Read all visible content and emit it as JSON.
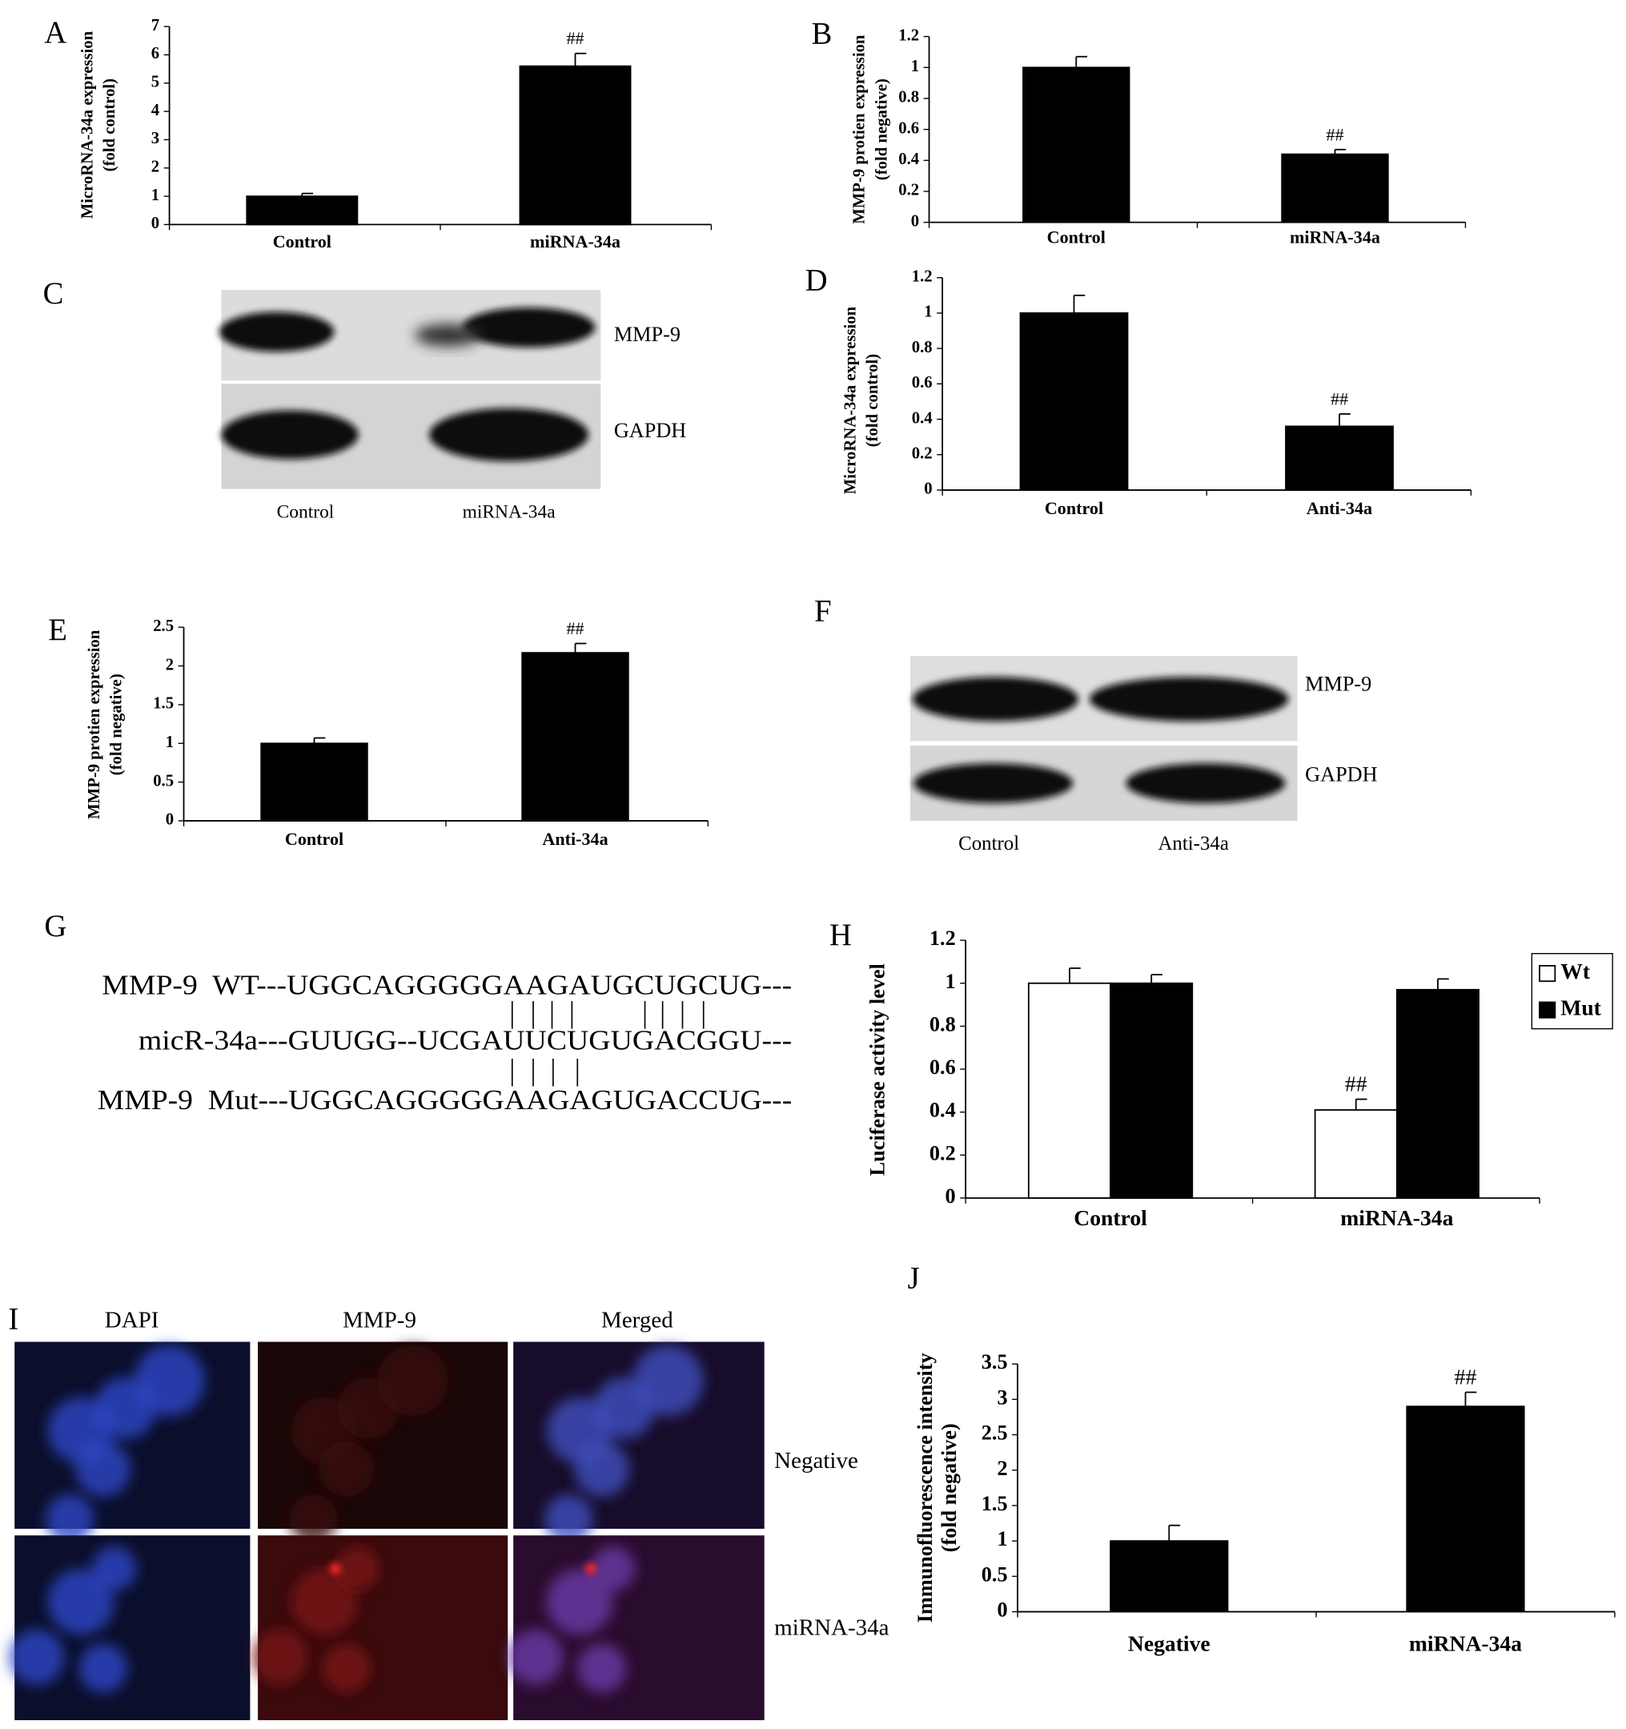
{
  "chart_data": [
    {
      "type": "bar",
      "panel_label": "A",
      "ylabel": [
        "MicroRNA-34a expression",
        "(fold control)"
      ],
      "categories": [
        "Control",
        "miRNA-34a"
      ],
      "values": [
        1.0,
        5.6
      ],
      "errors": [
        0.1,
        0.45
      ],
      "color": "#000000",
      "ylim": [
        0,
        7
      ],
      "yticks": [
        0,
        1,
        2,
        3,
        4,
        5,
        6,
        7
      ],
      "annotations": [
        {
          "text": "##",
          "category": "miRNA-34a"
        }
      ]
    },
    {
      "type": "bar",
      "panel_label": "B",
      "ylabel": [
        "MMP-9 protien expression",
        "(fold negative)"
      ],
      "categories": [
        "Control",
        "miRNA-34a"
      ],
      "values": [
        1.0,
        0.44
      ],
      "errors": [
        0.07,
        0.03
      ],
      "color": "#000000",
      "ylim": [
        0,
        1.2
      ],
      "yticks": [
        0,
        0.2,
        0.4,
        0.6,
        0.8,
        1,
        1.2
      ],
      "annotations": [
        {
          "text": "##",
          "category": "miRNA-34a"
        }
      ]
    },
    {
      "type": "bar",
      "panel_label": "D",
      "ylabel": [
        "MicroRNA-34a expression",
        "(fold control)"
      ],
      "categories": [
        "Control",
        "Anti-34a"
      ],
      "values": [
        1.0,
        0.36
      ],
      "errors": [
        0.1,
        0.07
      ],
      "color": "#000000",
      "ylim": [
        0,
        1.2
      ],
      "yticks": [
        0,
        0.2,
        0.4,
        0.6,
        0.8,
        1,
        1.2
      ],
      "annotations": [
        {
          "text": "##",
          "category": "Anti-34a"
        }
      ]
    },
    {
      "type": "bar",
      "panel_label": "E",
      "ylabel": [
        "MMP-9 protien expression",
        "(fold negative)"
      ],
      "categories": [
        "Control",
        "Anti-34a"
      ],
      "values": [
        1.0,
        2.17
      ],
      "errors": [
        0.07,
        0.12
      ],
      "color": "#000000",
      "ylim": [
        0,
        2.5
      ],
      "yticks": [
        0,
        0.5,
        1,
        1.5,
        2,
        2.5
      ],
      "annotations": [
        {
          "text": "##",
          "category": "Anti-34a"
        }
      ]
    },
    {
      "type": "grouped_bar",
      "panel_label": "H",
      "ylabel": [
        "Luciferase activity level"
      ],
      "categories": [
        "Control",
        "miRNA-34a"
      ],
      "series": [
        {
          "name": "Wt",
          "color": "#ffffff",
          "values": [
            1.0,
            0.41
          ],
          "errors": [
            0.07,
            0.05
          ]
        },
        {
          "name": "Mut",
          "color": "#000000",
          "values": [
            1.0,
            0.97
          ],
          "errors": [
            0.04,
            0.05
          ]
        }
      ],
      "ylim": [
        0,
        1.2
      ],
      "yticks": [
        0,
        0.2,
        0.4,
        0.6,
        0.8,
        1,
        1.2
      ],
      "legend": "upper right",
      "annotations": [
        {
          "text": "##",
          "category": "miRNA-34a",
          "series": "Wt"
        }
      ]
    },
    {
      "type": "bar",
      "panel_label": "J",
      "ylabel": [
        "Immunofluorescence intensity",
        "(fold negative)"
      ],
      "categories": [
        "Negative",
        "miRNA-34a"
      ],
      "values": [
        1.0,
        2.9
      ],
      "errors": [
        0.22,
        0.2
      ],
      "color": "#000000",
      "ylim": [
        0,
        3.5
      ],
      "yticks": [
        0,
        0.5,
        1,
        1.5,
        2,
        2.5,
        3,
        3.5
      ],
      "annotations": [
        {
          "text": "##",
          "category": "miRNA-34a"
        }
      ]
    }
  ],
  "blots": [
    {
      "panel_label": "C",
      "bands": [
        "MMP-9",
        "GAPDH"
      ],
      "lanes": [
        "Control",
        "miRNA-34a"
      ]
    },
    {
      "panel_label": "F",
      "bands": [
        "MMP-9",
        "GAPDH"
      ],
      "lanes": [
        "Control",
        "Anti-34a"
      ]
    }
  ],
  "sequence": {
    "panel_label": "G",
    "lines": [
      "MMP-9  WT---UGGCAGGGGGAAGAUGCUGCUG---",
      "micR-34a---GUUGG--UCGAUUCUGUGACGGU---",
      "MMP-9  Mut---UGGCAGGGGGAAGAGUGACCUG---"
    ]
  },
  "immunofluorescence": {
    "panel_label": "I",
    "columns": [
      "DAPI",
      "MMP-9",
      "Merged"
    ],
    "rows": [
      "Negative",
      "miRNA-34a"
    ]
  }
}
